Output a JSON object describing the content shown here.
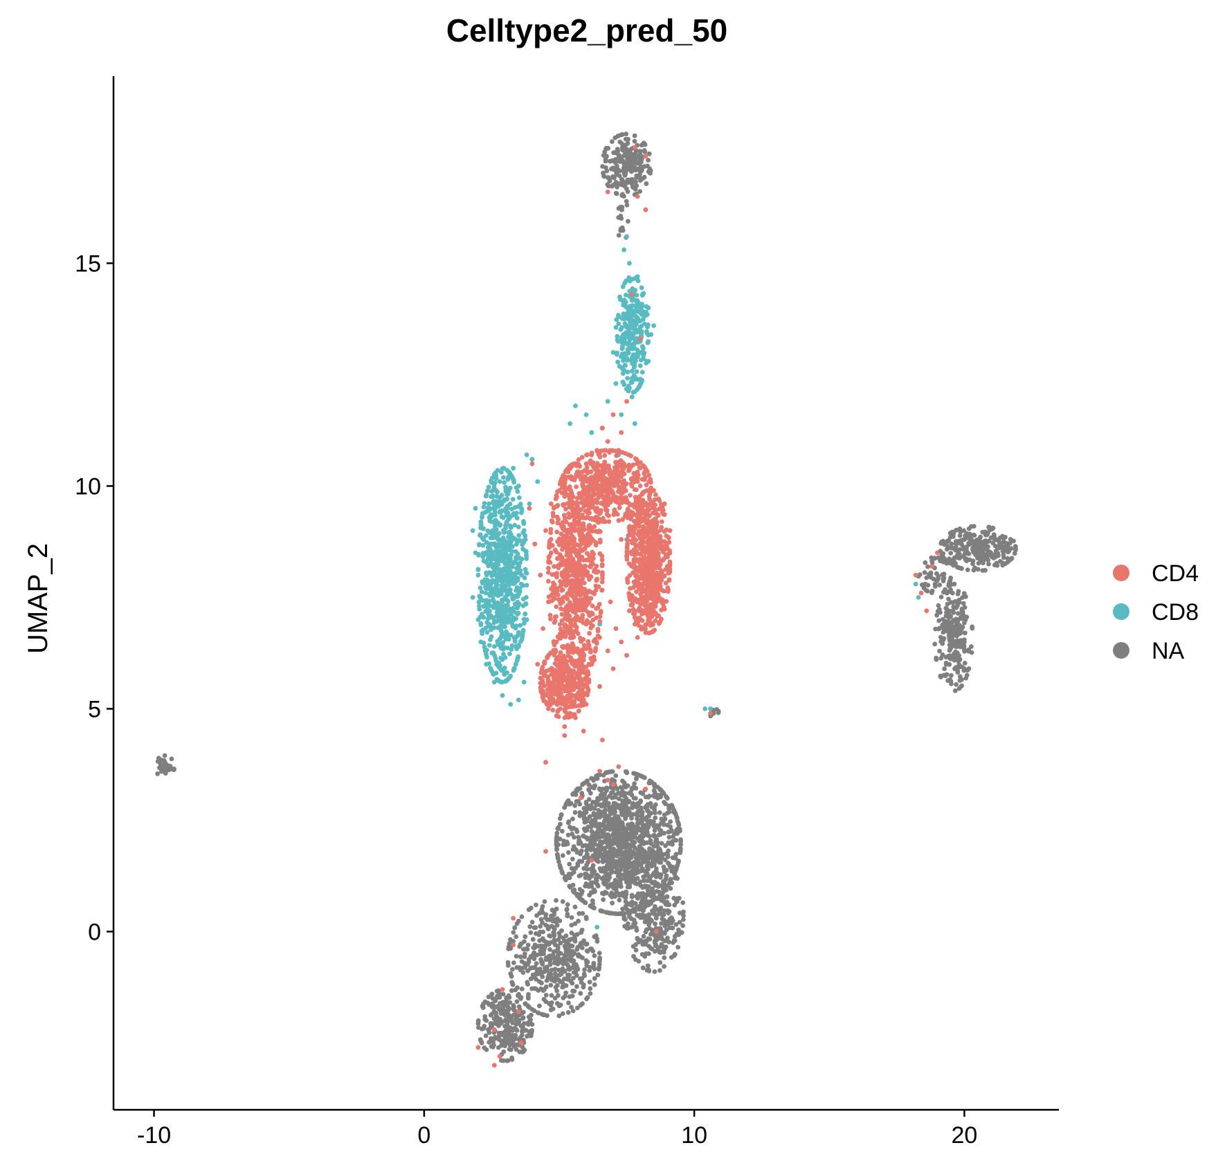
{
  "chart_data": {
    "type": "scatter",
    "title": "Celltype2_pred_50",
    "xlabel": "",
    "ylabel": "UMAP_2",
    "xlim": [
      -11.5,
      23.5
    ],
    "ylim": [
      -4,
      19.2
    ],
    "x_ticks": [
      -10,
      0,
      10,
      20
    ],
    "x_tick_labels": [
      "-10",
      "0",
      "10",
      "20"
    ],
    "y_ticks": [
      0,
      5,
      10,
      15
    ],
    "y_tick_labels": [
      "0",
      "5",
      "10",
      "15"
    ],
    "grid": false,
    "legend_position": "right",
    "legend": [
      {
        "name": "CD4",
        "color": "#E8766D"
      },
      {
        "name": "CD8",
        "color": "#59BBC2"
      },
      {
        "name": "NA",
        "color": "#7F7F7F"
      }
    ],
    "series": [
      {
        "name": "CD4",
        "color": "#E8766D",
        "points": [
          [
            4.6,
            5.0
          ],
          [
            5.0,
            5.3
          ],
          [
            5.4,
            5.8
          ],
          [
            5.8,
            6.2
          ],
          [
            4.9,
            6.5
          ],
          [
            5.3,
            7.0
          ],
          [
            4.8,
            7.5
          ],
          [
            5.1,
            8.0
          ],
          [
            4.7,
            8.5
          ],
          [
            5.2,
            9.0
          ],
          [
            5.5,
            9.5
          ],
          [
            5.0,
            9.9
          ],
          [
            5.6,
            10.2
          ],
          [
            6.0,
            10.5
          ],
          [
            6.4,
            10.8
          ],
          [
            6.8,
            11.0
          ],
          [
            7.2,
            10.8
          ],
          [
            7.6,
            10.4
          ],
          [
            8.0,
            10.0
          ],
          [
            8.4,
            9.6
          ],
          [
            8.8,
            9.2
          ],
          [
            9.0,
            8.6
          ],
          [
            8.8,
            8.0
          ],
          [
            8.6,
            7.4
          ],
          [
            8.3,
            7.0
          ],
          [
            7.9,
            6.6
          ],
          [
            7.5,
            6.2
          ],
          [
            7.0,
            5.9
          ],
          [
            6.5,
            5.5
          ],
          [
            6.0,
            5.1
          ],
          [
            5.6,
            4.8
          ],
          [
            5.2,
            4.6
          ],
          [
            4.4,
            5.4
          ],
          [
            4.2,
            6.0
          ],
          [
            4.4,
            6.8
          ],
          [
            4.6,
            7.4
          ],
          [
            4.3,
            8.0
          ],
          [
            4.5,
            9.0
          ],
          [
            4.7,
            9.6
          ],
          [
            5.8,
            7.6
          ],
          [
            6.2,
            8.4
          ],
          [
            5.9,
            9.1
          ],
          [
            6.3,
            9.8
          ],
          [
            6.8,
            9.9
          ],
          [
            7.3,
            9.7
          ],
          [
            7.9,
            9.3
          ],
          [
            8.3,
            8.6
          ],
          [
            8.1,
            7.8
          ],
          [
            7.6,
            7.2
          ],
          [
            7.1,
            6.8
          ],
          [
            6.5,
            6.6
          ],
          [
            6.0,
            6.9
          ],
          [
            5.5,
            6.6
          ],
          [
            5.1,
            6.0
          ],
          [
            4.8,
            5.6
          ],
          [
            5.3,
            5.2
          ],
          [
            5.7,
            5.5
          ],
          [
            6.1,
            6.0
          ],
          [
            8.5,
            9.9
          ],
          [
            8.9,
            9.6
          ],
          [
            9.1,
            9.0
          ],
          [
            9.0,
            8.2
          ],
          [
            8.7,
            7.7
          ],
          [
            8.4,
            7.2
          ],
          [
            7.8,
            6.9
          ],
          [
            7.3,
            6.5
          ],
          [
            6.8,
            6.3
          ],
          [
            6.3,
            6.1
          ],
          [
            5.4,
            4.9
          ],
          [
            5.9,
            5.3
          ],
          [
            4.0,
            10.5
          ],
          [
            3.9,
            9.5
          ],
          [
            4.1,
            8.7
          ],
          [
            6.6,
            11.3
          ],
          [
            7.0,
            11.6
          ],
          [
            7.5,
            11.9
          ],
          [
            7.3,
            11.2
          ],
          [
            5.2,
            4.4
          ],
          [
            5.9,
            4.5
          ],
          [
            6.6,
            4.3
          ],
          [
            4.5,
            3.8
          ],
          [
            6.5,
            3.6
          ],
          [
            7.2,
            3.7
          ],
          [
            6.8,
            3.4
          ],
          [
            7.9,
            16.5
          ],
          [
            8.2,
            16.2
          ],
          [
            7.8,
            17.6
          ],
          [
            8.2,
            17.4
          ],
          [
            6.8,
            16.6
          ],
          [
            8.0,
            13.3
          ],
          [
            7.7,
            14.3
          ],
          [
            3.3,
            -0.3
          ],
          [
            2.9,
            -1.3
          ],
          [
            3.5,
            -1.8
          ],
          [
            2.6,
            -2.2
          ],
          [
            3.6,
            -2.5
          ],
          [
            2.8,
            -2.8
          ],
          [
            3.3,
            0.3
          ],
          [
            4.5,
            1.8
          ],
          [
            6.2,
            1.6
          ],
          [
            5.8,
            3.0
          ],
          [
            7.0,
            3.3
          ],
          [
            8.2,
            3.2
          ],
          [
            8.6,
            0.0
          ],
          [
            18.4,
            7.6
          ],
          [
            18.8,
            8.2
          ],
          [
            18.2,
            8.0
          ],
          [
            19.0,
            8.5
          ],
          [
            18.6,
            7.2
          ],
          [
            10.6,
            4.9
          ],
          [
            2.0,
            -2.6
          ],
          [
            2.6,
            -3.0
          ],
          [
            6.9,
            7.4
          ],
          [
            6.6,
            8.0
          ],
          [
            7.3,
            8.8
          ],
          [
            7.8,
            8.2
          ],
          [
            8.6,
            8.9
          ],
          [
            5.7,
            9.2
          ],
          [
            6.4,
            9.3
          ],
          [
            7.1,
            9.4
          ]
        ]
      },
      {
        "name": "CD8",
        "color": "#59BBC2",
        "points": [
          [
            3.8,
            10.7
          ],
          [
            3.3,
            10.4
          ],
          [
            2.8,
            10.1
          ],
          [
            2.3,
            9.8
          ],
          [
            1.9,
            9.5
          ],
          [
            1.8,
            9.0
          ],
          [
            1.9,
            8.5
          ],
          [
            2.0,
            8.0
          ],
          [
            1.8,
            7.5
          ],
          [
            2.0,
            7.0
          ],
          [
            2.1,
            6.5
          ],
          [
            2.3,
            6.0
          ],
          [
            2.6,
            5.6
          ],
          [
            2.9,
            5.3
          ],
          [
            3.2,
            5.1
          ],
          [
            3.5,
            5.2
          ],
          [
            3.7,
            5.6
          ],
          [
            3.4,
            6.0
          ],
          [
            3.1,
            6.6
          ],
          [
            3.3,
            7.2
          ],
          [
            3.6,
            7.8
          ],
          [
            3.4,
            8.4
          ],
          [
            3.7,
            9.0
          ],
          [
            3.9,
            9.6
          ],
          [
            4.2,
            10.1
          ],
          [
            4.0,
            10.6
          ],
          [
            2.5,
            9.2
          ],
          [
            2.7,
            8.6
          ],
          [
            2.4,
            7.8
          ],
          [
            2.8,
            7.1
          ],
          [
            2.6,
            6.4
          ],
          [
            3.0,
            5.8
          ],
          [
            3.5,
            10.0
          ],
          [
            3.1,
            9.4
          ],
          [
            2.9,
            8.0
          ],
          [
            3.2,
            8.9
          ],
          [
            2.2,
            8.8
          ],
          [
            2.4,
            6.9
          ],
          [
            2.7,
            6.0
          ],
          [
            3.5,
            6.4
          ],
          [
            3.8,
            7.0
          ],
          [
            3.0,
            7.5
          ],
          [
            2.2,
            7.3
          ],
          [
            2.1,
            9.2
          ],
          [
            3.6,
            9.4
          ],
          [
            6.0,
            11.6
          ],
          [
            5.6,
            11.8
          ],
          [
            5.4,
            11.4
          ],
          [
            6.2,
            11.2
          ],
          [
            6.8,
            11.9
          ],
          [
            7.1,
            12.3
          ],
          [
            7.4,
            12.6
          ],
          [
            7.0,
            13.0
          ],
          [
            7.5,
            13.4
          ],
          [
            7.9,
            13.7
          ],
          [
            7.6,
            14.0
          ],
          [
            8.1,
            14.3
          ],
          [
            7.9,
            14.7
          ],
          [
            7.6,
            15.0
          ],
          [
            7.4,
            15.3
          ],
          [
            7.5,
            15.6
          ],
          [
            8.4,
            13.4
          ],
          [
            8.3,
            12.8
          ],
          [
            8.0,
            12.4
          ],
          [
            7.7,
            12.0
          ],
          [
            7.3,
            11.6
          ],
          [
            6.6,
            11.3
          ],
          [
            8.3,
            14.0
          ],
          [
            7.2,
            13.8
          ],
          [
            8.5,
            13.6
          ],
          [
            7.9,
            12.9
          ],
          [
            7.8,
            11.4
          ],
          [
            7.2,
            10.7
          ],
          [
            6.6,
            10.3
          ],
          [
            7.8,
            7.2
          ],
          [
            6.5,
            6.9
          ],
          [
            7.5,
            8.8
          ],
          [
            6.4,
            0.1
          ],
          [
            18.2,
            7.8
          ],
          [
            18.3,
            7.5
          ],
          [
            10.6,
            5.0
          ],
          [
            10.4,
            5.0
          ]
        ]
      }
    ],
    "clusters": [
      {
        "category": "NA",
        "cx": 7.5,
        "cy": 17.2,
        "rx": 0.9,
        "ry": 0.7,
        "n": 220
      },
      {
        "category": "NA",
        "cx": 7.3,
        "cy": 16.0,
        "rx": 0.25,
        "ry": 0.6,
        "n": 18
      },
      {
        "category": "NA",
        "cx": 7.2,
        "cy": 2.0,
        "rx": 2.3,
        "ry": 1.6,
        "n": 1300
      },
      {
        "category": "NA",
        "cx": 4.8,
        "cy": -0.6,
        "rx": 1.7,
        "ry": 1.3,
        "n": 450
      },
      {
        "category": "NA",
        "cx": 3.0,
        "cy": -2.1,
        "rx": 1.0,
        "ry": 0.8,
        "n": 260
      },
      {
        "category": "NA",
        "cx": 8.5,
        "cy": 0.4,
        "rx": 1.1,
        "ry": 1.3,
        "n": 300
      },
      {
        "category": "NA",
        "cx": 20.5,
        "cy": 8.6,
        "rx": 1.4,
        "ry": 0.5,
        "n": 260
      },
      {
        "category": "NA",
        "cx": 19.6,
        "cy": 6.6,
        "rx": 0.7,
        "ry": 1.2,
        "n": 220
      },
      {
        "category": "NA",
        "cx": 18.9,
        "cy": 8.0,
        "rx": 0.6,
        "ry": 0.4,
        "n": 50
      },
      {
        "category": "NA",
        "cx": -9.6,
        "cy": 3.7,
        "rx": 0.35,
        "ry": 0.25,
        "n": 30
      },
      {
        "category": "NA",
        "cx": 10.8,
        "cy": 4.9,
        "rx": 0.25,
        "ry": 0.1,
        "n": 8
      },
      {
        "category": "CD4",
        "cx": 5.6,
        "cy": 8.0,
        "rx": 1.0,
        "ry": 2.5,
        "n": 850
      },
      {
        "category": "CD4",
        "cx": 8.3,
        "cy": 8.3,
        "rx": 0.8,
        "ry": 1.6,
        "n": 650
      },
      {
        "category": "CD4",
        "cx": 6.8,
        "cy": 10.0,
        "rx": 1.6,
        "ry": 0.8,
        "n": 450
      },
      {
        "category": "CD4",
        "cx": 5.2,
        "cy": 5.6,
        "rx": 0.9,
        "ry": 0.8,
        "n": 350
      },
      {
        "category": "CD8",
        "cx": 2.9,
        "cy": 8.0,
        "rx": 0.9,
        "ry": 2.4,
        "n": 750
      },
      {
        "category": "CD8",
        "cx": 7.7,
        "cy": 13.4,
        "rx": 0.6,
        "ry": 1.3,
        "n": 280
      }
    ]
  }
}
